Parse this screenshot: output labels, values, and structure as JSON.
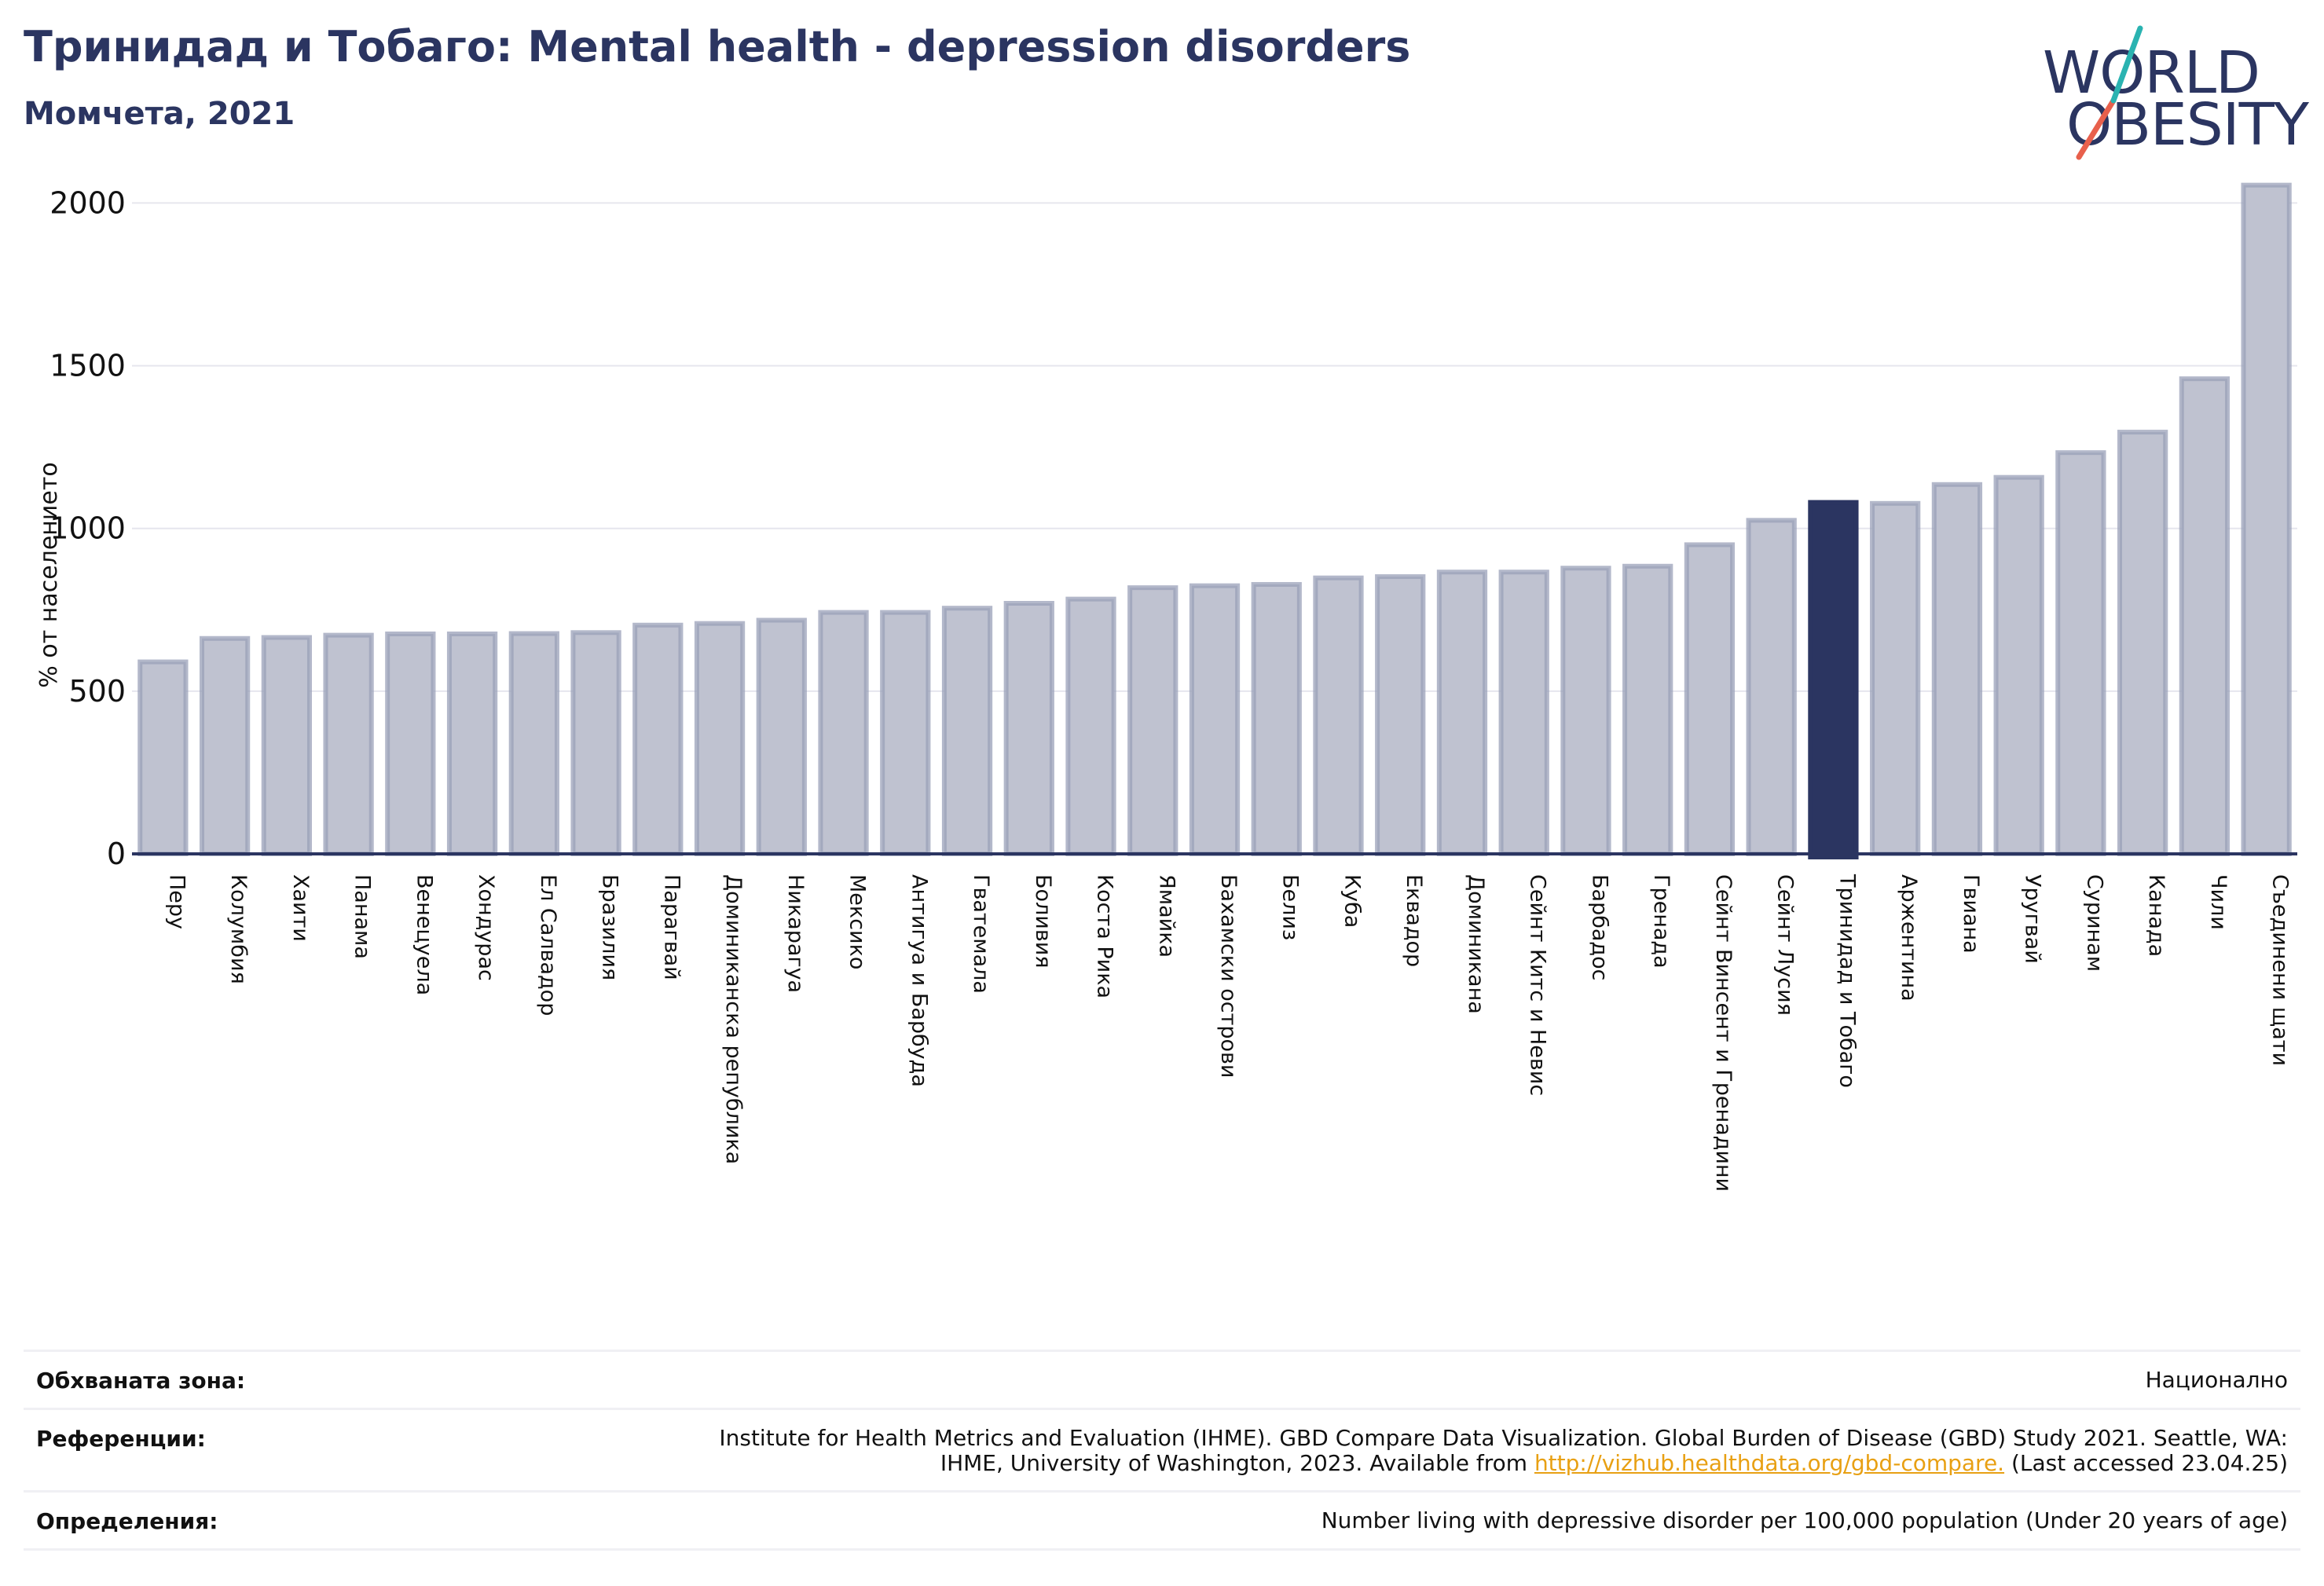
{
  "header": {
    "title": "Тринидад и Тобаго: Mental health - depression disorders",
    "subtitle": "Момчета, 2021"
  },
  "logo": {
    "line1": "WORLD",
    "line2": "OBESITY"
  },
  "colors": {
    "bar": "#bfc2d0",
    "bar_stroke": "#9aa0b8",
    "highlight": "#2b3561",
    "grid": "#e6e6ee"
  },
  "chart_data": {
    "type": "bar",
    "ylabel": "% от населението",
    "ylim": [
      0,
      2100
    ],
    "yticks": [
      0,
      500,
      1000,
      1500,
      2000
    ],
    "grid": true,
    "highlight": "Тринидад и Тобаго",
    "categories": [
      "Перу",
      "Колумбия",
      "Хаити",
      "Панама",
      "Венецуела",
      "Хондурас",
      "Ел Салвадор",
      "Бразилия",
      "Парагвай",
      "Доминиканска република",
      "Никарагуа",
      "Мексико",
      "Антигуа и Барбуда",
      "Гватемала",
      "Боливия",
      "Коста Рика",
      "Ямайка",
      "Бахамски острови",
      "Белиз",
      "Куба",
      "Еквадор",
      "Доминикана",
      "Сейнт Китс и Невис",
      "Барбадос",
      "Гренада",
      "Сейнт Винсент и Гренадини",
      "Сейнт Лусия",
      "Тринидад и Тобаго",
      "Аржентина",
      "Гвиана",
      "Уругвай",
      "Суринам",
      "Канада",
      "Чили",
      "Съединени щати"
    ],
    "values": [
      590,
      662,
      665,
      672,
      676,
      676,
      677,
      680,
      703,
      708,
      718,
      742,
      742,
      755,
      770,
      783,
      818,
      824,
      828,
      848,
      852,
      866,
      866,
      878,
      884,
      950,
      1025,
      1080,
      1077,
      1135,
      1157,
      1233,
      1296,
      1460,
      2055
    ]
  },
  "footer": {
    "coverage_label": "Обхваната зона:",
    "coverage_value": "Национално",
    "references_label": "Референции:",
    "references_text_1": "Institute for Health Metrics and Evaluation (IHME). GBD Compare Data Visualization. Global Burden of Disease (GBD) Study 2021. Seattle, WA: IHME, University of Washington, 2023. Available from ",
    "references_link": "http://vizhub.healthdata.org/gbd-compare.",
    "references_text_2": " (Last accessed 23.04.25)",
    "definitions_label": "Определения:",
    "definitions_value": "Number living with depressive disorder per 100,000 population (Under 20 years of age)"
  }
}
